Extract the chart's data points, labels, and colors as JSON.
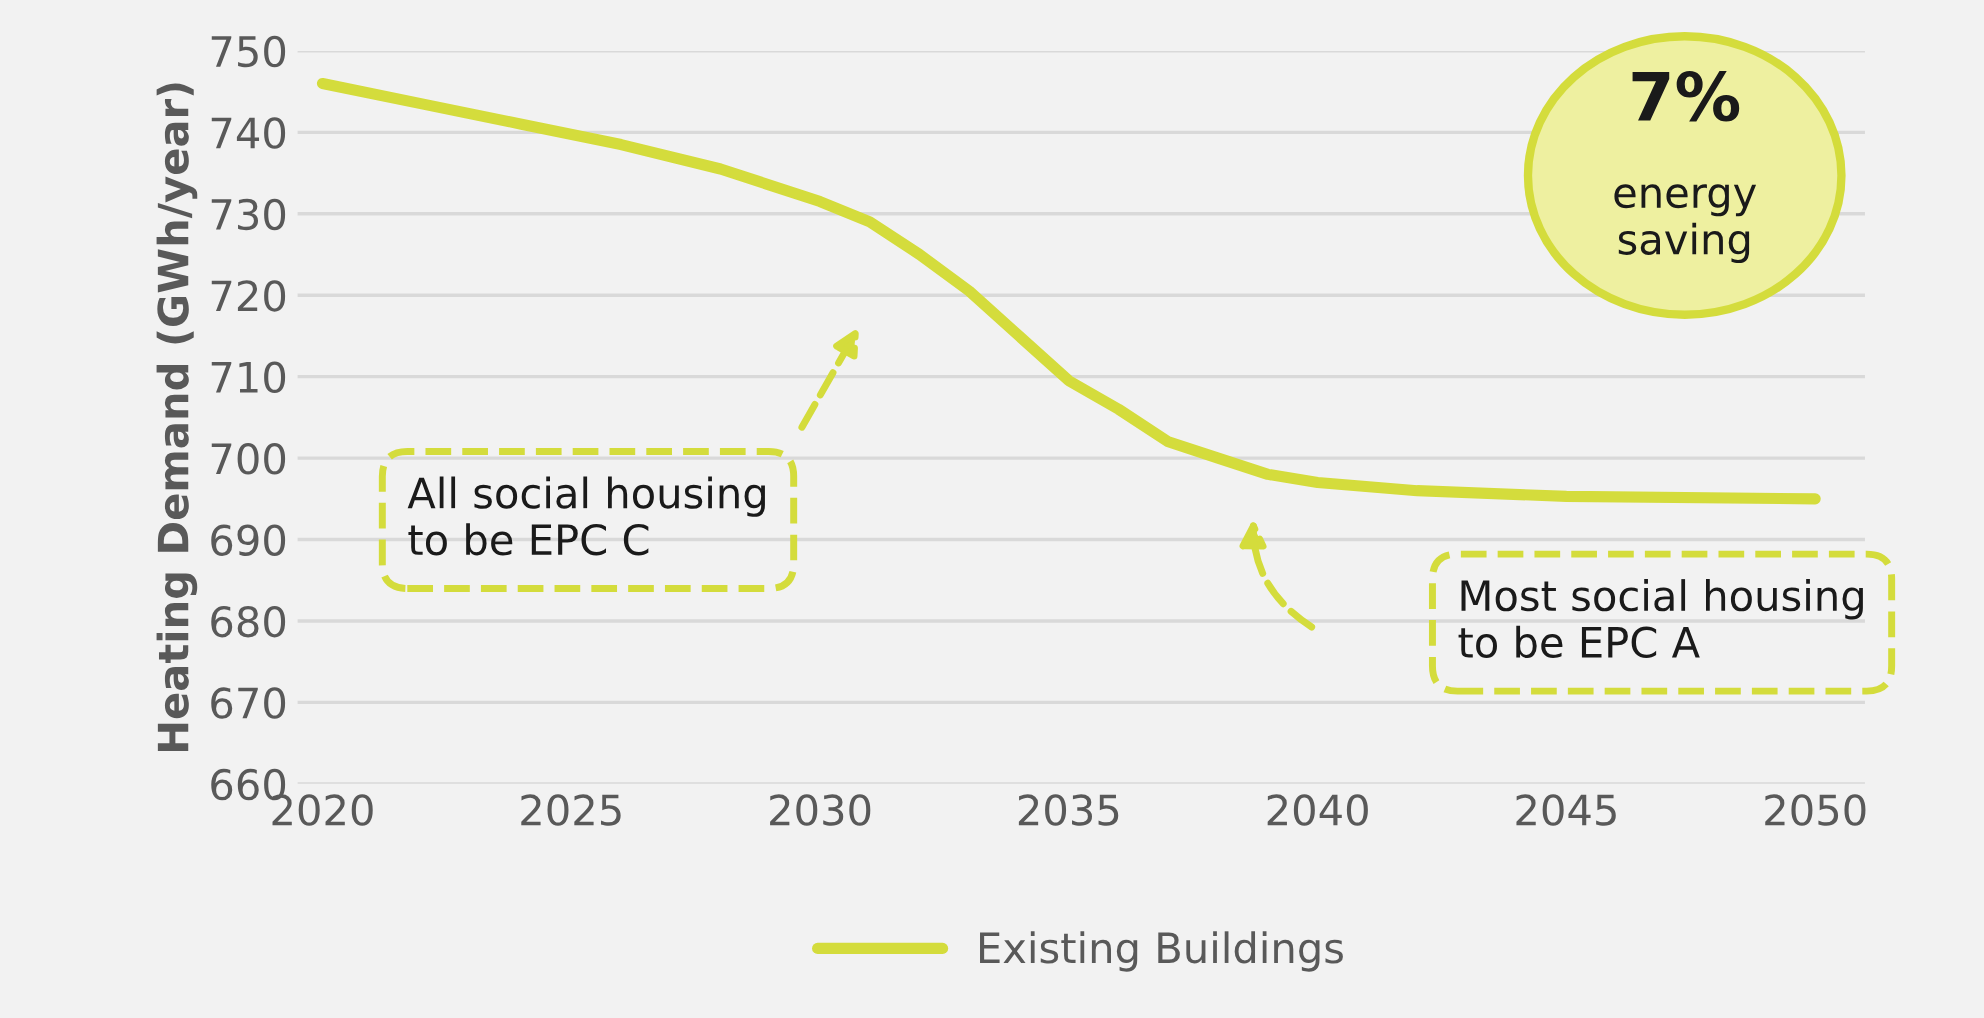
{
  "chart_data": {
    "type": "line",
    "ylabel": "Heating Demand (GWh/year)",
    "x": [
      2020,
      2022,
      2024,
      2026,
      2028,
      2030,
      2031,
      2032,
      2033,
      2034,
      2035,
      2036,
      2037,
      2038,
      2039,
      2040,
      2042,
      2045,
      2050
    ],
    "series": [
      {
        "name": "Existing Buildings",
        "color": "#d4dc3c",
        "values": [
          746,
          743.5,
          741,
          738.5,
          735.5,
          731.5,
          729,
          725,
          720.5,
          715,
          709.5,
          706,
          702,
          700,
          698,
          697,
          696,
          695.3,
          695
        ]
      }
    ],
    "xlim": [
      2019.5,
      2051
    ],
    "xticks": [
      2020,
      2025,
      2030,
      2035,
      2040,
      2045,
      2050
    ],
    "ylim": [
      660,
      750
    ],
    "yticks": [
      660,
      670,
      680,
      690,
      700,
      710,
      720,
      730,
      740,
      750
    ],
    "grid": "y",
    "legend": "bottom",
    "marker": "none",
    "line_style": "solid",
    "annotations": [
      "7%",
      "energy\nsaving",
      "All social housing\nto be EPC C",
      "Most social housing\nto be EPC A"
    ]
  }
}
